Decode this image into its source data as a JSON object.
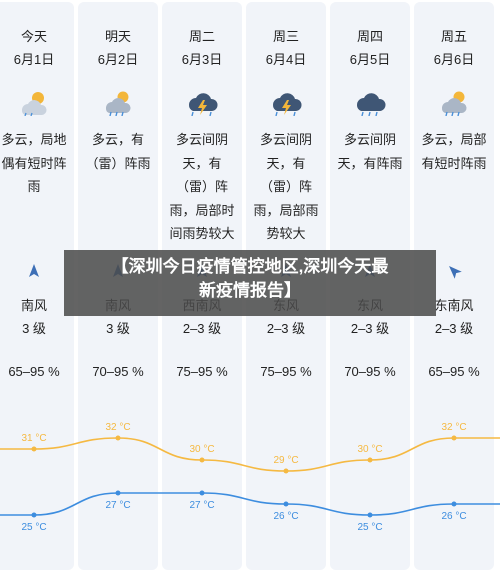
{
  "days": [
    {
      "day": "今天",
      "date": "6月1日",
      "icon": "partly-cloudy-sun-icon",
      "desc": [
        "多云，局地",
        "偶有短时阵",
        "雨"
      ],
      "arrow": "wind-north-arrow-icon",
      "wind": "南风",
      "level": "3 级",
      "humidity": "65–95 %",
      "high": "31 °C",
      "low": "25 °C"
    },
    {
      "day": "明天",
      "date": "6月2日",
      "icon": "cloud-sun-rain-icon",
      "desc": [
        "多云，有",
        "（雷）阵雨"
      ],
      "arrow": "wind-north-arrow-icon",
      "wind": "南风",
      "level": "3 级",
      "humidity": "70–95 %",
      "high": "32 °C",
      "low": "27 °C"
    },
    {
      "day": "周二",
      "date": "6月3日",
      "icon": "thunderstorm-icon",
      "desc": [
        "多云间阴",
        "天，有",
        "（雷）阵",
        "雨，局部时",
        "间雨势较大"
      ],
      "arrow": "wind-arrow-icon",
      "wind": "西南风",
      "level": "2–3 级",
      "humidity": "75–95 %",
      "high": "30 °C",
      "low": "27 °C"
    },
    {
      "day": "周三",
      "date": "6月4日",
      "icon": "thunderstorm-icon",
      "desc": [
        "多云间阴",
        "天，有",
        "（雷）阵",
        "雨，局部雨",
        "势较大"
      ],
      "arrow": "wind-arrow-icon",
      "wind": "东风",
      "level": "2–3 级",
      "humidity": "75–95 %",
      "high": "29 °C",
      "low": "26 °C"
    },
    {
      "day": "周四",
      "date": "6月5日",
      "icon": "cloud-rain-icon",
      "desc": [
        "多云间阴",
        "天，有阵雨"
      ],
      "arrow": "wind-arrow-icon",
      "wind": "东风",
      "level": "2–3 级",
      "humidity": "70–95 %",
      "high": "30 °C",
      "low": "25 °C"
    },
    {
      "day": "周五",
      "date": "6月6日",
      "icon": "partly-cloudy-rain-icon",
      "desc": [
        "多云，局部",
        "有短时阵雨"
      ],
      "arrow": "wind-southeast-arrow-icon",
      "wind": "东南风",
      "level": "2–3 级",
      "humidity": "65–95 %",
      "high": "32 °C",
      "low": "26 °C"
    }
  ],
  "overlay": {
    "line1": "【深圳今日疫情管控地区,深圳今天最",
    "line2": "新疫情报告】"
  },
  "chart_data": {
    "type": "line",
    "x": [
      "6月1日",
      "6月2日",
      "6月3日",
      "6月4日",
      "6月5日",
      "6月6日"
    ],
    "ylim": [
      23,
      34
    ],
    "series": [
      {
        "values": [
          31,
          32,
          30,
          29,
          30,
          32
        ],
        "color": "#f5b942"
      },
      {
        "values": [
          25,
          27,
          27,
          26,
          25,
          26
        ],
        "color": "#3d8ddf"
      }
    ]
  }
}
